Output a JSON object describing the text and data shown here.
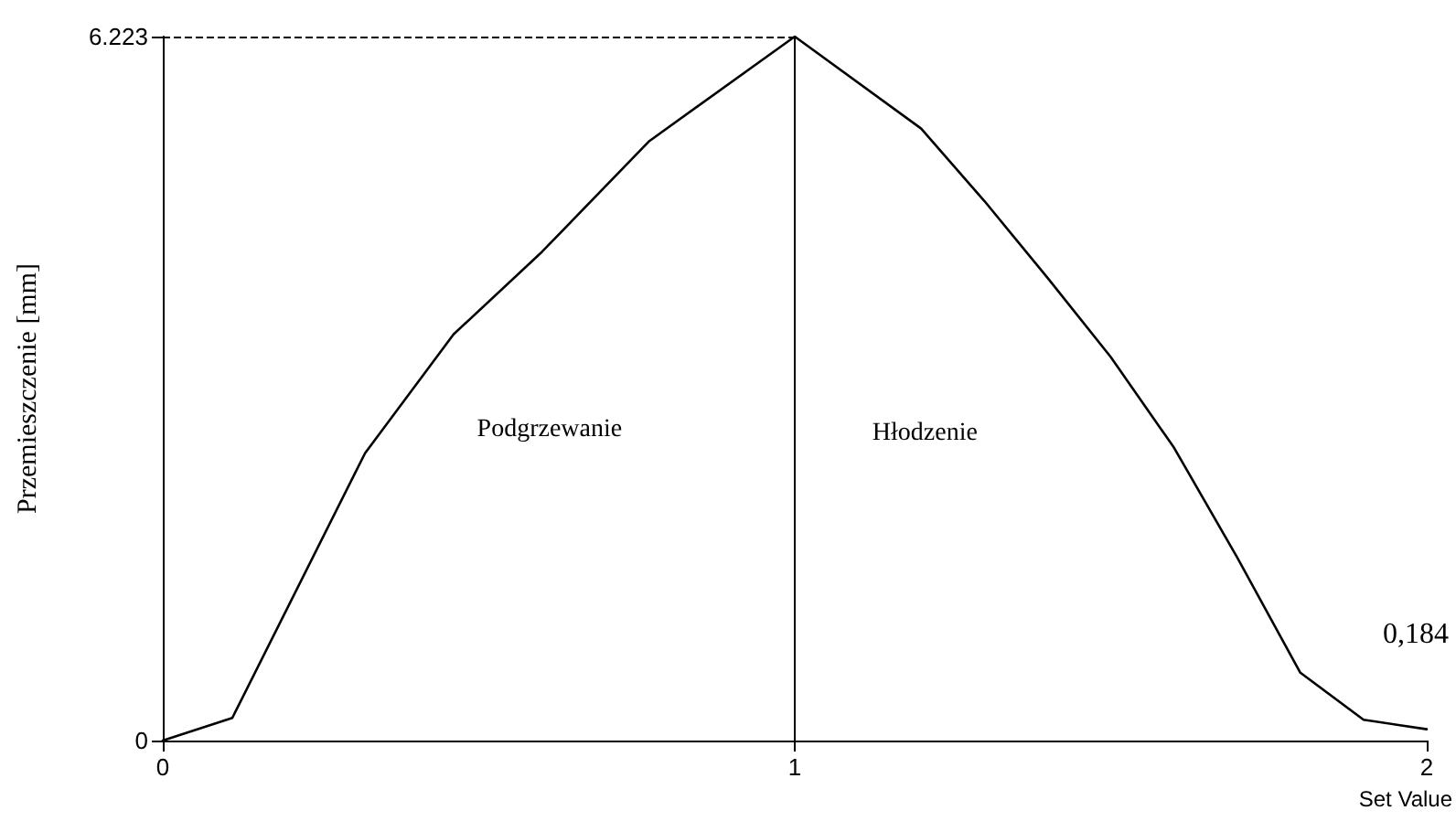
{
  "chart_data": {
    "type": "line",
    "xlabel": "Set Value",
    "ylabel": "Przemieszczenie [mm]",
    "x": [
      0,
      0.11,
      0.32,
      0.46,
      0.6,
      0.77,
      1,
      1.2,
      1.3,
      1.4,
      1.5,
      1.6,
      1.7,
      1.8,
      1.9,
      2
    ],
    "series": [
      {
        "color": "#000000",
        "values": [
          0,
          0.2,
          2.54,
          3.59,
          4.32,
          5.3,
          6.223,
          5.41,
          4.77,
          4.09,
          3.39,
          2.59,
          1.62,
          0.6,
          0.184,
          0.1
        ]
      }
    ],
    "xlim": [
      0,
      2
    ],
    "xticks": [
      0,
      1,
      2
    ],
    "ylim": [
      0,
      6.223
    ],
    "yticks": [
      0,
      6.223
    ],
    "marker": "none",
    "ref_lines": [
      {
        "axis": "y",
        "value": 6.223,
        "color": "#000000",
        "line_style": "dashed"
      },
      {
        "axis": "x",
        "value": 1,
        "color": "#000000",
        "line_style": "solid"
      }
    ],
    "annotations": [
      "Podgrzewanie",
      "Hłodzenie",
      "0,184"
    ]
  }
}
